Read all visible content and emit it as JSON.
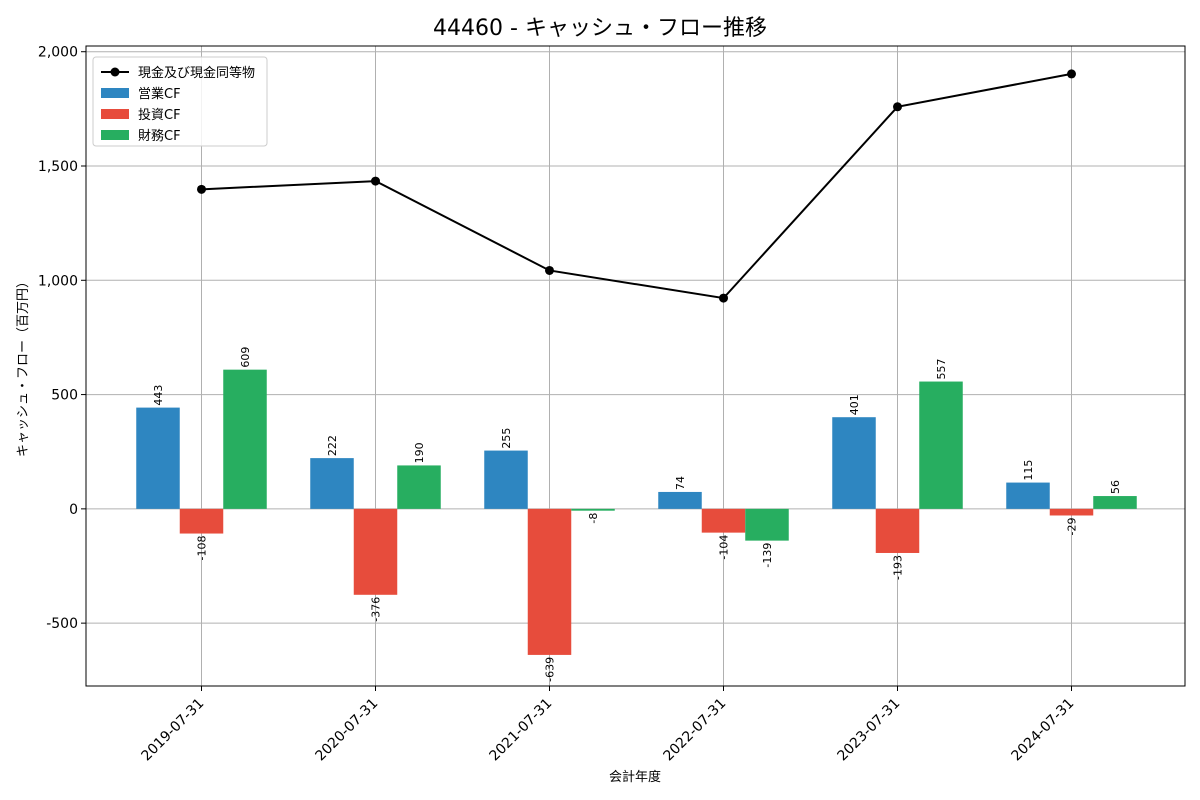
{
  "chart_data": {
    "type": "bar",
    "title": "44460 - キャッシュ・フロー推移",
    "xlabel": "会計年度",
    "ylabel": "キャッシュ・フロー（百万円）",
    "categories": [
      "2019-07-31",
      "2020-07-31",
      "2021-07-31",
      "2022-07-31",
      "2023-07-31",
      "2024-07-31"
    ],
    "series": [
      {
        "name": "営業CF",
        "type": "bar",
        "color": "#2e86c1",
        "values": [
          443,
          222,
          255,
          74,
          401,
          115
        ]
      },
      {
        "name": "投資CF",
        "type": "bar",
        "color": "#e74c3c",
        "values": [
          -108,
          -376,
          -639,
          -104,
          -193,
          -29
        ]
      },
      {
        "name": "財務CF",
        "type": "bar",
        "color": "#27ae60",
        "values": [
          609,
          190,
          -8,
          -139,
          557,
          56
        ]
      },
      {
        "name": "現金及び現金同等物",
        "type": "line",
        "color": "#000000",
        "values": [
          1398,
          1434,
          1043,
          922,
          1759,
          1903
        ]
      }
    ],
    "ylim": [
      -775,
      2025
    ],
    "yticks": [
      -500,
      0,
      500,
      1000,
      1500,
      2000
    ],
    "ytick_labels": [
      "-500",
      "0",
      "500",
      "1,000",
      "1,500",
      "2,000"
    ],
    "grid": true,
    "legend_position": "top-left"
  }
}
